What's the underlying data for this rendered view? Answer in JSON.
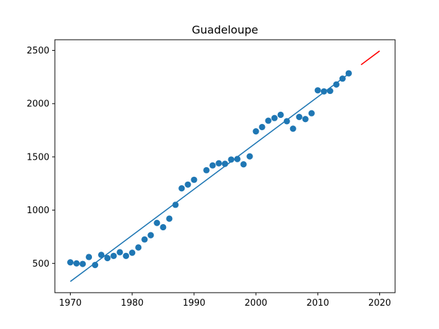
{
  "chart_data": {
    "type": "scatter",
    "title": "Guadeloupe",
    "xlabel": "",
    "ylabel": "",
    "xlim": [
      1967.5,
      2022.5
    ],
    "ylim": [
      225,
      2600
    ],
    "xticks": [
      1970,
      1980,
      1990,
      2000,
      2010,
      2020
    ],
    "yticks": [
      500,
      1000,
      1500,
      2000,
      2500
    ],
    "grid": false,
    "series": [
      {
        "kind": "scatter",
        "color": "#1f77b4",
        "x": [
          1970,
          1971,
          1972,
          1973,
          1974,
          1975,
          1976,
          1977,
          1978,
          1979,
          1980,
          1981,
          1982,
          1983,
          1984,
          1985,
          1986,
          1987,
          1988,
          1989,
          1990,
          1992,
          1993,
          1994,
          1995,
          1996,
          1997,
          1998,
          1999,
          2000,
          2001,
          2002,
          2003,
          2004,
          2005,
          2006,
          2007,
          2008,
          2009,
          2010,
          2011,
          2012,
          2013,
          2014,
          2015
        ],
        "y": [
          510,
          500,
          495,
          560,
          485,
          580,
          550,
          570,
          605,
          570,
          600,
          650,
          725,
          765,
          880,
          840,
          920,
          1050,
          1205,
          1240,
          1285,
          1375,
          1420,
          1440,
          1435,
          1475,
          1480,
          1430,
          1505,
          1740,
          1780,
          1840,
          1865,
          1895,
          1835,
          1765,
          1875,
          1855,
          1910,
          2125,
          2115,
          2120,
          2180,
          2235,
          2285
        ]
      },
      {
        "kind": "line",
        "color": "#1f77b4",
        "x": [
          1970,
          2015
        ],
        "y": [
          330,
          2280
        ]
      },
      {
        "kind": "line",
        "color": "#ff0000",
        "x": [
          2017,
          2020
        ],
        "y": [
          2365,
          2495
        ]
      }
    ]
  }
}
